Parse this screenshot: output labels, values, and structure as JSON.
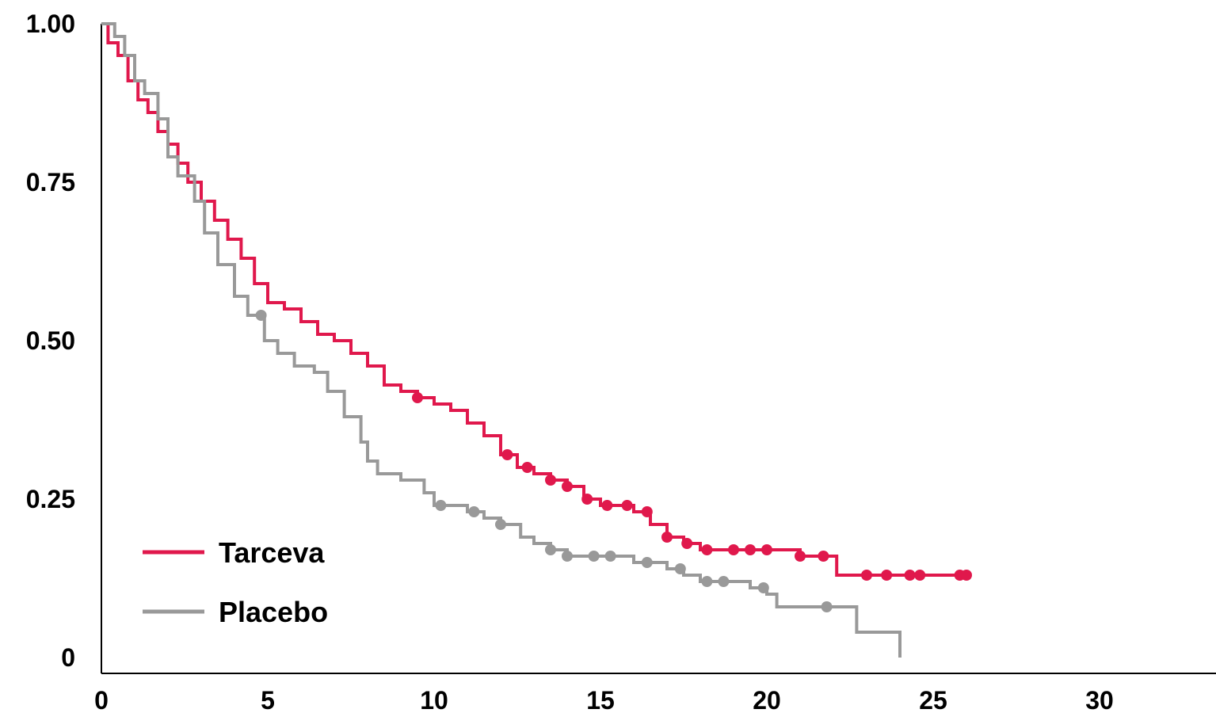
{
  "chart_data": {
    "type": "line",
    "step": true,
    "title": "",
    "xlabel": "",
    "ylabel": "",
    "xlim": [
      0,
      33.5
    ],
    "ylim": [
      0,
      1
    ],
    "x_ticks": [
      0,
      5,
      10,
      15,
      20,
      25,
      30
    ],
    "x_tick_labels": [
      "0",
      "5",
      "10",
      "15",
      "20",
      "25",
      "30"
    ],
    "y_ticks": [
      0,
      0.25,
      0.5,
      0.75,
      1.0
    ],
    "y_tick_labels": [
      "0",
      "0.25",
      "0.50",
      "0.75",
      "1.00"
    ],
    "grid": false,
    "legend_position": "bottom-left",
    "series": [
      {
        "name": "Tarceva",
        "color": "#e0184c",
        "points": [
          [
            0,
            1.0
          ],
          [
            0.2,
            0.97
          ],
          [
            0.5,
            0.95
          ],
          [
            0.8,
            0.91
          ],
          [
            1.1,
            0.88
          ],
          [
            1.4,
            0.86
          ],
          [
            1.7,
            0.83
          ],
          [
            2.0,
            0.81
          ],
          [
            2.3,
            0.78
          ],
          [
            2.6,
            0.75
          ],
          [
            3.0,
            0.72
          ],
          [
            3.4,
            0.69
          ],
          [
            3.8,
            0.66
          ],
          [
            4.2,
            0.63
          ],
          [
            4.6,
            0.59
          ],
          [
            5.0,
            0.56
          ],
          [
            5.5,
            0.55
          ],
          [
            6.0,
            0.53
          ],
          [
            6.5,
            0.51
          ],
          [
            7.0,
            0.5
          ],
          [
            7.5,
            0.48
          ],
          [
            8.0,
            0.46
          ],
          [
            8.5,
            0.43
          ],
          [
            9.0,
            0.42
          ],
          [
            9.5,
            0.41
          ],
          [
            10.0,
            0.4
          ],
          [
            10.5,
            0.39
          ],
          [
            11.0,
            0.37
          ],
          [
            11.5,
            0.35
          ],
          [
            12.0,
            0.32
          ],
          [
            12.5,
            0.3
          ],
          [
            13.0,
            0.29
          ],
          [
            13.5,
            0.28
          ],
          [
            14.0,
            0.27
          ],
          [
            14.5,
            0.25
          ],
          [
            15.0,
            0.24
          ],
          [
            16.0,
            0.23
          ],
          [
            16.5,
            0.21
          ],
          [
            17.0,
            0.19
          ],
          [
            17.5,
            0.18
          ],
          [
            18.0,
            0.17
          ],
          [
            19.0,
            0.17
          ],
          [
            20.0,
            0.17
          ],
          [
            21.0,
            0.16
          ],
          [
            22.0,
            0.16
          ],
          [
            22.1,
            0.13
          ],
          [
            24.0,
            0.13
          ],
          [
            25.9,
            0.13
          ]
        ],
        "censored": [
          9.5,
          12.2,
          12.8,
          13.5,
          14.0,
          14.6,
          15.2,
          15.8,
          16.4,
          17.0,
          17.6,
          18.2,
          19.0,
          19.5,
          20.0,
          21.0,
          21.7,
          23.0,
          23.6,
          24.3,
          24.6,
          25.8,
          26.0
        ]
      },
      {
        "name": "Placebo",
        "color": "#999999",
        "points": [
          [
            0,
            1.0
          ],
          [
            0.4,
            0.98
          ],
          [
            0.7,
            0.95
          ],
          [
            1.0,
            0.91
          ],
          [
            1.3,
            0.89
          ],
          [
            1.7,
            0.85
          ],
          [
            2.0,
            0.79
          ],
          [
            2.3,
            0.76
          ],
          [
            2.8,
            0.72
          ],
          [
            3.1,
            0.67
          ],
          [
            3.5,
            0.62
          ],
          [
            4.0,
            0.57
          ],
          [
            4.4,
            0.54
          ],
          [
            4.9,
            0.5
          ],
          [
            5.3,
            0.48
          ],
          [
            5.8,
            0.46
          ],
          [
            6.4,
            0.45
          ],
          [
            6.8,
            0.42
          ],
          [
            7.3,
            0.38
          ],
          [
            7.8,
            0.34
          ],
          [
            8.0,
            0.31
          ],
          [
            8.3,
            0.29
          ],
          [
            9.0,
            0.28
          ],
          [
            9.7,
            0.26
          ],
          [
            10.0,
            0.24
          ],
          [
            10.6,
            0.24
          ],
          [
            11.0,
            0.23
          ],
          [
            11.5,
            0.22
          ],
          [
            12.0,
            0.21
          ],
          [
            12.6,
            0.19
          ],
          [
            13.0,
            0.18
          ],
          [
            13.5,
            0.17
          ],
          [
            14.0,
            0.16
          ],
          [
            15.0,
            0.16
          ],
          [
            16.0,
            0.15
          ],
          [
            16.7,
            0.15
          ],
          [
            17.0,
            0.14
          ],
          [
            17.5,
            0.13
          ],
          [
            18.0,
            0.12
          ],
          [
            19.0,
            0.12
          ],
          [
            19.5,
            0.11
          ],
          [
            19.8,
            0.11
          ],
          [
            20.0,
            0.1
          ],
          [
            20.3,
            0.08
          ],
          [
            22.0,
            0.08
          ],
          [
            22.6,
            0.08
          ],
          [
            22.7,
            0.04
          ],
          [
            23.9,
            0.04
          ],
          [
            24.0,
            0.0
          ]
        ],
        "censored": [
          4.8,
          10.2,
          11.2,
          12.0,
          13.5,
          14.0,
          14.8,
          15.3,
          16.4,
          17.4,
          18.2,
          18.7,
          19.9,
          21.8
        ]
      }
    ]
  }
}
